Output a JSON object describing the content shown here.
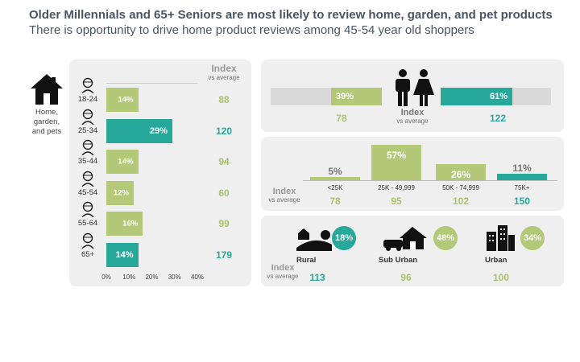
{
  "title": "Older Millennials and 65+ Seniors are most likely to review home, garden, and pet products",
  "subtitle": "There is opportunity to drive home product reviews among 45-54 year old shoppers",
  "category_label": "Home,\ngarden,\nand pets",
  "index_header": "Index",
  "index_sub": "vs average",
  "colors": {
    "green": "#b3c978",
    "teal": "#26a89a",
    "panel": "#efefef"
  },
  "chart_data": [
    {
      "type": "bar",
      "orientation": "horizontal",
      "categories": [
        "18-24",
        "25-34",
        "35-44",
        "45-54",
        "55-64",
        "65+"
      ],
      "values": [
        14,
        29,
        14,
        12,
        16,
        14
      ],
      "value_labels": [
        "14%",
        "29%",
        "14%",
        "12%",
        "16%",
        "14%"
      ],
      "index": [
        88,
        120,
        94,
        60,
        99,
        179
      ],
      "highlight": [
        "25-34",
        "65+"
      ],
      "xticks": [
        "0%",
        "10%",
        "20%",
        "30%",
        "40%"
      ],
      "xlim": [
        0,
        40
      ]
    },
    {
      "type": "bar",
      "name": "gender",
      "categories": [
        "Male",
        "Female"
      ],
      "values": [
        39,
        61
      ],
      "value_labels": [
        "39%",
        "61%"
      ],
      "index": [
        78,
        122
      ]
    },
    {
      "type": "bar",
      "name": "income",
      "categories": [
        "<25K",
        "25K - 49,999",
        "50K - 74,999",
        "75K+"
      ],
      "values": [
        5,
        57,
        26,
        11
      ],
      "value_labels": [
        "5%",
        "57%",
        "26%",
        "11%"
      ],
      "index": [
        78,
        95,
        102,
        150
      ]
    },
    {
      "type": "bar",
      "name": "area",
      "categories": [
        "Rural",
        "Sub Urban",
        "Urban"
      ],
      "values": [
        18,
        48,
        34
      ],
      "value_labels": [
        "18%",
        "48%",
        "34%"
      ],
      "index": [
        113,
        96,
        100
      ]
    }
  ]
}
